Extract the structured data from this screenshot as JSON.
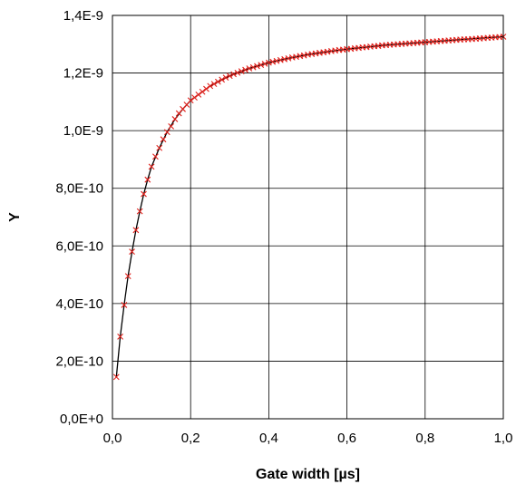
{
  "chart_data": {
    "type": "scatter",
    "title": "",
    "xlabel": "Gate width [µs]",
    "ylabel": "Y",
    "xlim": [
      0,
      1.0
    ],
    "ylim": [
      0,
      1.4e-09
    ],
    "grid": true,
    "x_ticks": [
      0,
      0.2,
      0.4,
      0.6,
      0.8,
      1.0
    ],
    "x_tick_labels": [
      "0,0",
      "0,2",
      "0,4",
      "0,6",
      "0,8",
      "1,0"
    ],
    "y_ticks": [
      0,
      2e-10,
      4e-10,
      6e-10,
      8e-10,
      1e-09,
      1.2e-09,
      1.4e-09
    ],
    "y_tick_labels": [
      "0,0E+0",
      "2,0E-10",
      "4,0E-10",
      "6,0E-10",
      "8,0E-10",
      "1,0E-9",
      "1,2E-9",
      "1,4E-9"
    ],
    "colors": {
      "markers": "#e0201b",
      "fit_line": "#000000",
      "grid": "#000000"
    },
    "series": [
      {
        "marker": "x",
        "x": [
          0.01,
          0.02,
          0.03,
          0.04,
          0.05,
          0.06,
          0.07,
          0.08,
          0.09,
          0.1,
          0.11,
          0.12,
          0.13,
          0.14,
          0.15,
          0.16,
          0.17,
          0.18,
          0.19,
          0.2,
          0.21,
          0.22,
          0.23,
          0.24,
          0.25,
          0.26,
          0.27,
          0.28,
          0.29,
          0.3,
          0.31,
          0.32,
          0.33,
          0.34,
          0.35,
          0.36,
          0.37,
          0.38,
          0.39,
          0.4,
          0.41,
          0.42,
          0.43,
          0.44,
          0.45,
          0.46,
          0.47,
          0.48,
          0.49,
          0.5,
          0.51,
          0.52,
          0.53,
          0.54,
          0.55,
          0.56,
          0.57,
          0.58,
          0.59,
          0.6,
          0.61,
          0.62,
          0.63,
          0.64,
          0.65,
          0.66,
          0.67,
          0.68,
          0.69,
          0.7,
          0.71,
          0.72,
          0.73,
          0.74,
          0.75,
          0.76,
          0.77,
          0.78,
          0.79,
          0.8,
          0.81,
          0.82,
          0.83,
          0.84,
          0.85,
          0.86,
          0.87,
          0.88,
          0.89,
          0.9,
          0.91,
          0.92,
          0.93,
          0.94,
          0.95,
          0.96,
          0.97,
          0.98,
          0.99,
          1.0
        ],
        "y": [
          1.45e-10,
          2.85e-10,
          3.95e-10,
          4.95e-10,
          5.8e-10,
          6.55e-10,
          7.2e-10,
          7.8e-10,
          8.3e-10,
          8.75e-10,
          9.1e-10,
          9.4e-10,
          9.7e-10,
          9.95e-10,
          1.015e-09,
          1.04e-09,
          1.06e-09,
          1.075e-09,
          1.09e-09,
          1.105e-09,
          1.115e-09,
          1.125e-09,
          1.135e-09,
          1.145e-09,
          1.155e-09,
          1.162e-09,
          1.17e-09,
          1.177e-09,
          1.184e-09,
          1.19e-09,
          1.196e-09,
          1.201e-09,
          1.206e-09,
          1.211e-09,
          1.216e-09,
          1.22e-09,
          1.224e-09,
          1.228e-09,
          1.232e-09,
          1.236e-09,
          1.239e-09,
          1.242e-09,
          1.245e-09,
          1.248e-09,
          1.251e-09,
          1.254e-09,
          1.256e-09,
          1.259e-09,
          1.261e-09,
          1.264e-09,
          1.266e-09,
          1.268e-09,
          1.27e-09,
          1.272e-09,
          1.274e-09,
          1.276e-09,
          1.278e-09,
          1.28e-09,
          1.281e-09,
          1.283e-09,
          1.284e-09,
          1.286e-09,
          1.287e-09,
          1.289e-09,
          1.29e-09,
          1.292e-09,
          1.293e-09,
          1.294e-09,
          1.296e-09,
          1.297e-09,
          1.298e-09,
          1.299e-09,
          1.3e-09,
          1.301e-09,
          1.302e-09,
          1.303e-09,
          1.304e-09,
          1.305e-09,
          1.306e-09,
          1.307e-09,
          1.308e-09,
          1.309e-09,
          1.31e-09,
          1.311e-09,
          1.312e-09,
          1.313e-09,
          1.314e-09,
          1.315e-09,
          1.316e-09,
          1.317e-09,
          1.317e-09,
          1.318e-09,
          1.319e-09,
          1.32e-09,
          1.321e-09,
          1.322e-09,
          1.323e-09,
          1.324e-09,
          1.325e-09,
          1.326e-09
        ]
      },
      {
        "marker": "line",
        "x": [
          0.01,
          0.02,
          0.03,
          0.04,
          0.05,
          0.06,
          0.07,
          0.08,
          0.09,
          0.1,
          0.12,
          0.14,
          0.16,
          0.18,
          0.2,
          0.25,
          0.3,
          0.35,
          0.4,
          0.45,
          0.5,
          0.55,
          0.6,
          0.65,
          0.7,
          0.75,
          0.8,
          0.85,
          0.9,
          0.95,
          1.0
        ],
        "y": [
          1.45e-10,
          2.85e-10,
          3.95e-10,
          4.95e-10,
          5.8e-10,
          6.55e-10,
          7.2e-10,
          7.8e-10,
          8.3e-10,
          8.75e-10,
          9.4e-10,
          9.95e-10,
          1.04e-09,
          1.075e-09,
          1.105e-09,
          1.155e-09,
          1.19e-09,
          1.216e-09,
          1.236e-09,
          1.251e-09,
          1.264e-09,
          1.274e-09,
          1.283e-09,
          1.29e-09,
          1.297e-09,
          1.302e-09,
          1.307e-09,
          1.312e-09,
          1.317e-09,
          1.322e-09,
          1.326e-09
        ]
      }
    ]
  }
}
